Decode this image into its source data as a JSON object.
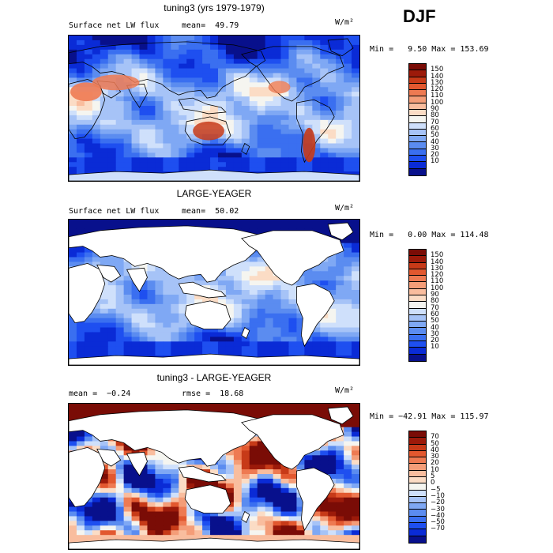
{
  "season": "DJF",
  "units": "W/m²",
  "colors": {
    "flux_scale": [
      "#08108c",
      "#0a2bd6",
      "#1e4ff0",
      "#3a6ff0",
      "#5b8cf0",
      "#7fa8f4",
      "#a6c3f7",
      "#cfe0fb",
      "#f5f5f0",
      "#fbdcc5",
      "#f9bd9e",
      "#f49d78",
      "#ee7a52",
      "#e2582f",
      "#c73a18",
      "#9c1a0a",
      "#7a0c06"
    ],
    "diff_scale": [
      "#08108c",
      "#0a2bd6",
      "#1e4ff0",
      "#3a6ff0",
      "#5b8cf0",
      "#7fa8f4",
      "#a6c3f7",
      "#cfe0fb",
      "#f5f5f0",
      "#fbdcc5",
      "#f9bd9e",
      "#f49d78",
      "#ee7a52",
      "#e2582f",
      "#c73a18",
      "#9c1a0a",
      "#7a0c06"
    ],
    "land": "#ffffff",
    "coast": "#000000"
  },
  "panels": [
    {
      "title": "tuning3 (yrs 1979-1979)",
      "left_label": "Surface net LW flux",
      "stat_label": "mean=  49.79",
      "range_label": "Min =   9.50 Max = 153.69",
      "ticks": [
        "150",
        "140",
        "130",
        "120",
        "110",
        "100",
        "90",
        "80",
        "70",
        "60",
        "50",
        "40",
        "30",
        "20",
        "10"
      ],
      "pattern": "model"
    },
    {
      "title": "LARGE-YEAGER",
      "left_label": "Surface net LW flux",
      "stat_label": "mean=  50.02",
      "range_label": "Min =   0.00 Max = 114.48",
      "ticks": [
        "150",
        "140",
        "130",
        "120",
        "110",
        "100",
        "90",
        "80",
        "70",
        "60",
        "50",
        "40",
        "30",
        "20",
        "10"
      ],
      "pattern": "obs"
    },
    {
      "title": "tuning3 - LARGE-YEAGER",
      "left_label": "mean =  −0.24",
      "stat_label": "rmse =  18.68",
      "range_label": "Min = −42.91 Max = 115.97",
      "ticks": [
        "70",
        "50",
        "40",
        "30",
        "20",
        "10",
        "5",
        "0",
        "−5",
        "−10",
        "−20",
        "−30",
        "−40",
        "−50",
        "−70"
      ],
      "pattern": "diff"
    }
  ]
}
